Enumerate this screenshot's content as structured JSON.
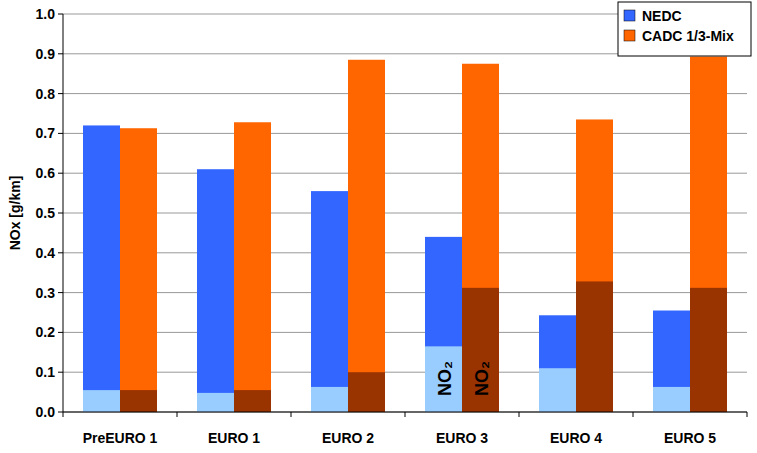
{
  "chart_data": {
    "type": "bar",
    "y_label": "NOx [g/km]",
    "categories": [
      "PreEURO 1",
      "EURO 1",
      "EURO 2",
      "EURO 3",
      "EURO 4",
      "EURO 5"
    ],
    "series": [
      {
        "name": "NEDC",
        "color": "#3366ff",
        "values": [
          0.72,
          0.61,
          0.555,
          0.44,
          0.243,
          0.255
        ],
        "no2": {
          "name": "NO₂",
          "color": "#99ccff",
          "values": [
            0.055,
            0.048,
            0.063,
            0.165,
            0.11,
            0.063
          ]
        }
      },
      {
        "name": "CADC 1/3-Mix",
        "color": "#ff6600",
        "values": [
          0.713,
          0.728,
          0.885,
          0.875,
          0.735,
          0.893
        ],
        "no2": {
          "name": "NO₂",
          "color": "#993300",
          "values": [
            0.055,
            0.055,
            0.1,
            0.312,
            0.328,
            0.312
          ]
        }
      }
    ],
    "ylim": [
      0,
      1
    ],
    "yticks": [
      {
        "value": 0,
        "label": "0.0"
      },
      0.1,
      0.2,
      0.3,
      0.4,
      0.5,
      0.6,
      0.7,
      0.8,
      0.9,
      {
        "value": 1,
        "label": "1.0"
      }
    ],
    "grid": true,
    "legend": "upper right"
  }
}
